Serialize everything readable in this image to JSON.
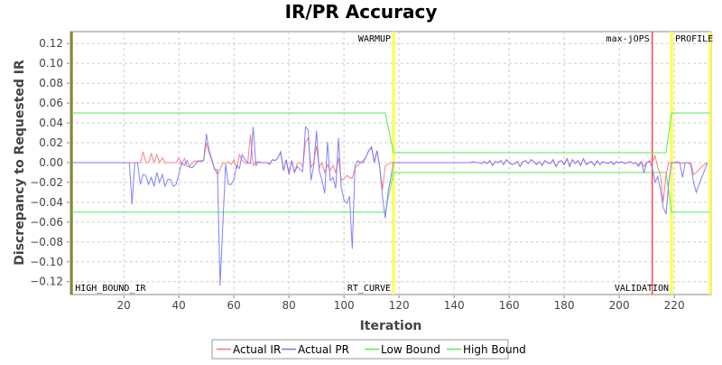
{
  "chart_data": {
    "type": "line",
    "title": "IR/PR Accuracy",
    "xlabel": "Iteration",
    "ylabel": "Discrepancy to Requested IR",
    "xlim": [
      0.6,
      233.4
    ],
    "ylim": [
      -0.133,
      0.132
    ],
    "grid": true,
    "legend_position": "bottom",
    "x_ticks": [
      20,
      40,
      60,
      80,
      100,
      120,
      140,
      160,
      180,
      200,
      220
    ],
    "y_ticks": [
      -0.12,
      -0.1,
      -0.08,
      -0.06,
      -0.04,
      -0.02,
      0.0,
      0.02,
      0.04,
      0.06,
      0.08,
      0.1,
      0.12
    ],
    "x_start": 1,
    "x_step": 1,
    "series": [
      {
        "name": "Actual IR",
        "color": "#ff7373",
        "values": [
          0,
          0,
          0,
          0,
          0,
          0,
          0,
          0,
          0,
          0,
          0,
          0,
          0,
          0,
          0,
          0,
          0,
          0,
          0,
          0,
          0,
          0,
          0,
          0,
          0,
          0,
          0.011,
          0,
          0,
          0.009,
          0,
          0.008,
          0,
          0.005,
          0,
          0,
          0,
          0,
          0,
          0.005,
          -0.002,
          0.004,
          -0.004,
          -0.004,
          0,
          0.002,
          0.001,
          0.002,
          0.002,
          0.02,
          0.01,
          0.002,
          -0.006,
          -0.012,
          -0.007,
          0,
          -0.001,
          0.001,
          -0.002,
          0.003,
          -0.006,
          0.008,
          0.002,
          0,
          -0.001,
          0.028,
          -0.003,
          0.001,
          0,
          0,
          0,
          0,
          -0.002,
          0.003,
          0.002,
          0.005,
          0.01,
          -0.008,
          0.003,
          -0.01,
          0.002,
          -0.01,
          -0.001,
          0,
          -0.004,
          0.02,
          0.025,
          -0.005,
          0,
          0.017,
          -0.005,
          0,
          -0.01,
          -0.002,
          -0.008,
          -0.003,
          -0.01,
          0.005,
          -0.018,
          -0.016,
          -0.013,
          -0.015,
          -0.016,
          -0.005,
          -0.003,
          0,
          0.002,
          0.006,
          0.012,
          0.015,
          0.001,
          0.012,
          -0.005,
          -0.027,
          -0.003,
          -0.002,
          0,
          0,
          0,
          0,
          0,
          0,
          0,
          0,
          0,
          0,
          0,
          0,
          0,
          0,
          0,
          0,
          0,
          0,
          0,
          0,
          0,
          0,
          0,
          0,
          0,
          0,
          0,
          0,
          0,
          0,
          0.001,
          0,
          0,
          -0.001,
          0.001,
          -0.001,
          0.002,
          -0.003,
          0.001,
          0,
          0.002,
          -0.002,
          0.003,
          0,
          -0.002,
          -0.001,
          0.001,
          -0.004,
          0.001,
          0.002,
          -0.001,
          0.003,
          0.001,
          -0.002,
          0.001,
          -0.003,
          0.002,
          0,
          -0.001,
          0.003,
          -0.004,
          0.001,
          0.002,
          -0.002,
          0.004,
          -0.004,
          0.003,
          -0.001,
          0.002,
          -0.003,
          0.004,
          -0.002,
          0,
          0.001,
          -0.003,
          0.002,
          -0.002,
          0.001,
          0,
          -0.001,
          0.001,
          -0.002,
          0.001,
          0,
          0.001,
          -0.001,
          0,
          0.001,
          -0.001,
          0,
          -0.002,
          0.001,
          -0.004,
          0,
          0.002,
          0,
          0.007,
          -0.005,
          -0.013,
          -0.04,
          -0.012,
          0,
          0,
          0,
          0.001,
          0,
          -0.001,
          0,
          0,
          0,
          -0.012,
          -0.01,
          -0.007,
          -0.004,
          -0.002,
          0
        ]
      },
      {
        "name": "Actual PR",
        "color": "#7373ff",
        "values": [
          0,
          0,
          0,
          0,
          0,
          0,
          0,
          0,
          0,
          0,
          0,
          0,
          0,
          0,
          0,
          0,
          0,
          0,
          0,
          0,
          0,
          0,
          -0.042,
          0,
          0,
          -0.022,
          -0.012,
          -0.013,
          -0.022,
          -0.015,
          -0.024,
          -0.01,
          -0.02,
          -0.012,
          -0.024,
          -0.017,
          -0.017,
          -0.024,
          -0.022,
          -0.012,
          0,
          -0.003,
          0.002,
          -0.005,
          -0.005,
          -0.002,
          0.002,
          0.001,
          0.002,
          0.029,
          0.012,
          0.003,
          -0.007,
          -0.007,
          -0.124,
          -0.06,
          -0.002,
          -0.022,
          -0.022,
          -0.017,
          -0.003,
          -0.006,
          0.008,
          0.003,
          0,
          -0.001,
          0.036,
          -0.003,
          0.001,
          0,
          0,
          0,
          -0.001,
          0.003,
          0.002,
          0.005,
          0.011,
          -0.008,
          0.003,
          -0.012,
          0.002,
          -0.01,
          -0.004,
          -0.007,
          -0.009,
          0.036,
          0.033,
          -0.018,
          -0.003,
          0.032,
          -0.008,
          -0.018,
          -0.031,
          0.021,
          -0.018,
          -0.015,
          -0.026,
          0.025,
          -0.025,
          -0.038,
          -0.041,
          -0.034,
          -0.087,
          -0.003,
          0.002,
          0,
          0,
          0.006,
          0.012,
          0.016,
          0,
          0.012,
          -0.005,
          -0.035,
          -0.056,
          -0.03,
          -0.015,
          0,
          0,
          0,
          0,
          0,
          0,
          0,
          0,
          0,
          0,
          0,
          0,
          0,
          0,
          0,
          0,
          0,
          0,
          0,
          0,
          0,
          0,
          0,
          0,
          0,
          0,
          0,
          0,
          0,
          0.001,
          0,
          0,
          -0.001,
          0.001,
          -0.001,
          0.002,
          -0.003,
          0.001,
          0,
          0.002,
          -0.002,
          0.003,
          0,
          -0.002,
          -0.001,
          0.001,
          -0.004,
          0.001,
          0.002,
          -0.001,
          0.003,
          0.001,
          -0.002,
          0.001,
          -0.003,
          0.002,
          0,
          -0.001,
          0.003,
          -0.004,
          0.001,
          0.002,
          -0.002,
          0.004,
          -0.004,
          0.003,
          -0.001,
          0.002,
          -0.003,
          0.004,
          -0.002,
          0,
          0.001,
          -0.003,
          0.002,
          -0.002,
          0.001,
          0,
          -0.001,
          0.001,
          -0.002,
          0.001,
          0,
          0.001,
          -0.001,
          0,
          0.001,
          -0.001,
          0,
          -0.004,
          0.001,
          -0.01,
          0,
          0.001,
          -0.005,
          -0.02,
          -0.014,
          -0.028,
          -0.045,
          -0.052,
          -0.02,
          0,
          0,
          0,
          0,
          -0.015,
          0,
          0,
          -0.002,
          -0.02,
          -0.03,
          -0.022,
          -0.015,
          -0.008,
          0
        ]
      },
      {
        "name": "Low Bound",
        "color": "#55ee55",
        "points": [
          [
            1,
            -0.05
          ],
          [
            115,
            -0.05
          ],
          [
            118,
            -0.01
          ],
          [
            217,
            -0.01
          ],
          [
            219,
            -0.05
          ],
          [
            233,
            -0.05
          ]
        ]
      },
      {
        "name": "High Bound",
        "color": "#55ee55",
        "points": [
          [
            1,
            0.05
          ],
          [
            115,
            0.05
          ],
          [
            118,
            0.01
          ],
          [
            217,
            0.01
          ],
          [
            219,
            0.05
          ],
          [
            233,
            0.05
          ]
        ]
      }
    ],
    "markers": [
      {
        "x": 1,
        "color": "#888833",
        "label": "HIGH_BOUND_IR",
        "label_pos": "bottom-right"
      },
      {
        "x": 118,
        "color": "#ffff44",
        "label": "WARMUP",
        "label_pos": "top-left"
      },
      {
        "x": 118,
        "color": "#ffff44",
        "label": "RT_CURVE",
        "label_pos": "bottom-left"
      },
      {
        "x": 212,
        "color": "#ff2020",
        "label": "max-jOPS",
        "label_pos": "top-left"
      },
      {
        "x": 219,
        "color": "#ffff44",
        "label": "VALIDATION",
        "label_pos": "bottom-left"
      },
      {
        "x": 219,
        "color": "#ffff44",
        "label": "PROFILE",
        "label_pos": "top-right"
      },
      {
        "x": 233,
        "color": "#ffff44",
        "label": "",
        "label_pos": "none"
      }
    ]
  }
}
